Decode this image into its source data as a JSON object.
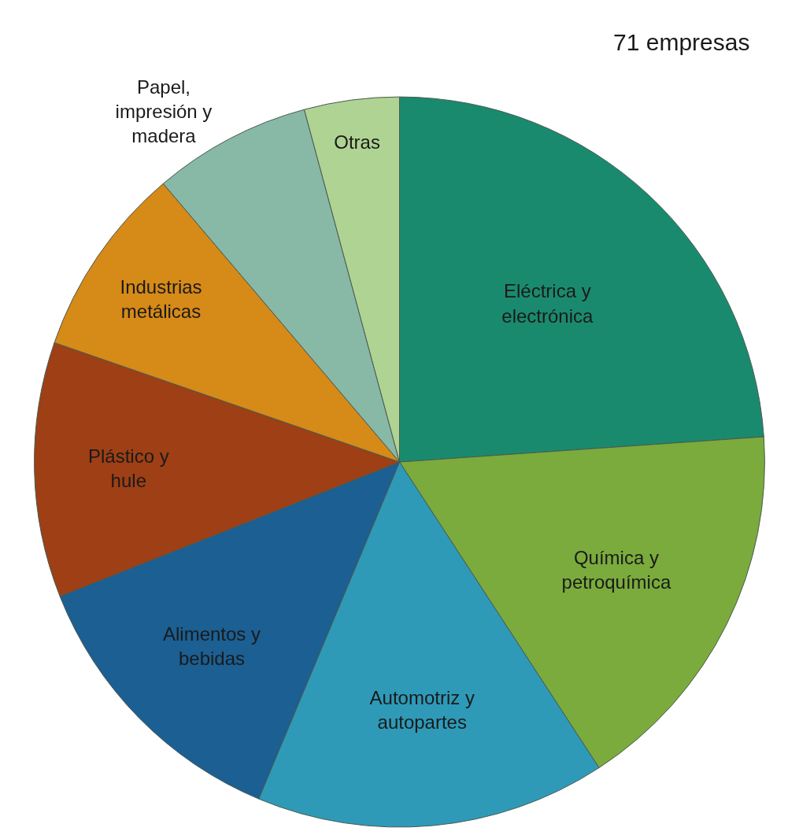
{
  "chart_data": {
    "type": "pie",
    "categories": [
      "Eléctrica y electrónica",
      "Química y petroquímica",
      "Automotriz y autopartes",
      "Alimentos y bebidas",
      "Plástico y hule",
      "Industrias metálicas",
      "Papel, impresión y madera",
      "Otras"
    ],
    "values": [
      23.9,
      16.9,
      15.5,
      12.7,
      11.3,
      8.5,
      7.0,
      4.2
    ],
    "colors": [
      "#1a8a6e",
      "#7aab3c",
      "#2e9ab8",
      "#1b5f93",
      "#9e3f15",
      "#d68a17",
      "#88b8a6",
      "#afd392"
    ],
    "annotations": [
      "71 empresas"
    ]
  }
}
